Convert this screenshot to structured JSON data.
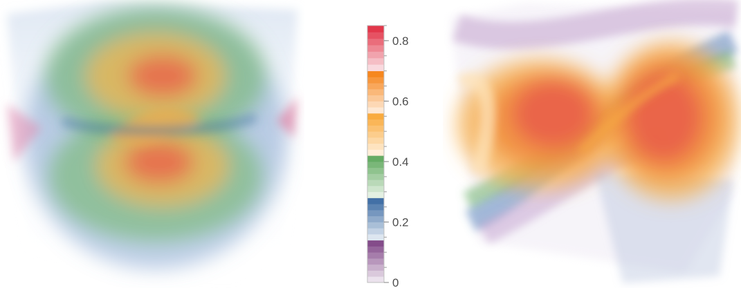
{
  "chart_data": [
    {
      "type": "heatmap",
      "subtype": "3d-volume-render",
      "title": "",
      "description_shape": "two stacked lobes (figure-eight) inside a cube",
      "colormap_ref": "shared-legend"
    },
    {
      "type": "heatmap",
      "subtype": "3d-volume-render",
      "title": "",
      "description_shape": "two side-by-side lobes (bow-tie) inside a cube",
      "colormap_ref": "shared-legend"
    }
  ],
  "legend": {
    "ticks": [
      {
        "value": 0,
        "label": "0"
      },
      {
        "value": 0.2,
        "label": "0.2"
      },
      {
        "value": 0.4,
        "label": "0.4"
      },
      {
        "value": 0.6,
        "label": "0.6"
      },
      {
        "value": 0.8,
        "label": "0.8"
      }
    ],
    "range": [
      0,
      0.85
    ],
    "bands": [
      {
        "from": 0.0,
        "to": 0.14,
        "color_low": "#f4eef5",
        "color_high": "#7b3f82"
      },
      {
        "from": 0.14,
        "to": 0.28,
        "color_low": "#eaf0f6",
        "color_high": "#3566a0"
      },
      {
        "from": 0.28,
        "to": 0.42,
        "color_low": "#edf6ec",
        "color_high": "#5aa65a"
      },
      {
        "from": 0.42,
        "to": 0.56,
        "color_low": "#fff4e5",
        "color_high": "#f8a532"
      },
      {
        "from": 0.56,
        "to": 0.7,
        "color_low": "#fff0e2",
        "color_high": "#f57f10"
      },
      {
        "from": 0.7,
        "to": 0.85,
        "color_low": "#fbe6ea",
        "color_high": "#e02a3e"
      }
    ]
  },
  "colors": {
    "purple": "#7b3f82",
    "blue": "#3b6fae",
    "green": "#5aa65a",
    "yellow": "#f8b448",
    "orange": "#f57f10",
    "red": "#e23a3e"
  }
}
